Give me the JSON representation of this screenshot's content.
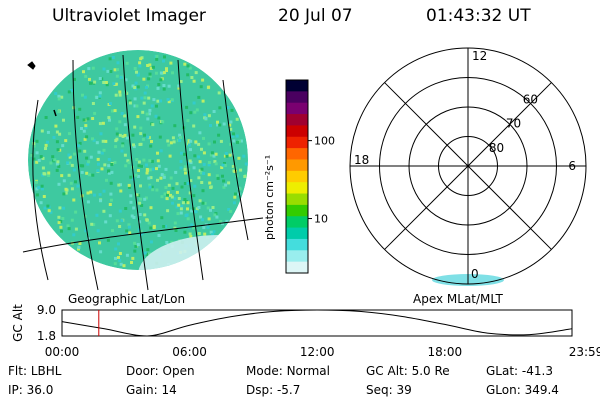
{
  "header": {
    "instrument": "Ultraviolet Imager",
    "date": "20 Jul 07",
    "time": "01:43:32 UT"
  },
  "colorbar": {
    "unit_label": "photon cm⁻²s⁻¹",
    "ticks": [
      {
        "label": "100",
        "value": 100
      },
      {
        "label": "10",
        "value": 10
      }
    ],
    "range": [
      2,
      600
    ],
    "colors": [
      "#000033",
      "#4a0060",
      "#7a0070",
      "#a00030",
      "#cc0000",
      "#ee2200",
      "#ff6600",
      "#ff9900",
      "#ffcc00",
      "#eeee00",
      "#99dd00",
      "#33cc00",
      "#00cc66",
      "#00ccaa",
      "#44dddd",
      "#99eeee",
      "#ddf6f6"
    ]
  },
  "polar": {
    "label": "Apex MLat/MLT",
    "hour_labels": [
      {
        "label": "12",
        "value": 12
      },
      {
        "label": "6",
        "value": 6
      },
      {
        "label": "0",
        "value": 0
      },
      {
        "label": "18",
        "value": 18
      }
    ],
    "lat_labels": [
      {
        "label": "60",
        "value": 60
      },
      {
        "label": "70",
        "value": 70
      },
      {
        "label": "80",
        "value": 80
      }
    ]
  },
  "geo": {
    "label": "Geographic Lat/Lon",
    "fill_color": "#3ec9a0",
    "edge_color": "#cdeff0"
  },
  "chart_data": {
    "type": "line",
    "ylabel": "GC Alt",
    "y_ticks": [
      "9.0",
      "1.8"
    ],
    "ylim": [
      1.8,
      9.0
    ],
    "x_ticks": [
      "00:00",
      "06:00",
      "12:00",
      "18:00",
      "23:59"
    ],
    "x_hours": [
      0,
      2,
      4,
      6,
      8,
      10,
      12,
      14,
      16,
      18,
      20,
      22,
      23.98
    ],
    "altitude_re": [
      5.8,
      3.8,
      1.8,
      4.8,
      7.2,
      8.6,
      9.0,
      8.6,
      7.2,
      5.0,
      2.6,
      2.2,
      3.8
    ],
    "current_time_hours": 1.73
  },
  "footer": {
    "rows": [
      [
        {
          "key": "Flt:",
          "value": "LBHL"
        },
        {
          "key": "Door:",
          "value": "Open"
        },
        {
          "key": "Mode:",
          "value": "Normal"
        },
        {
          "key": "GC Alt:",
          "value": "5.0 Re"
        },
        {
          "key": "GLat:",
          "value": "-41.3"
        }
      ],
      [
        {
          "key": "IP:",
          "value": "36.0"
        },
        {
          "key": "Gain:",
          "value": "14"
        },
        {
          "key": "Dsp:",
          "value": "-5.7"
        },
        {
          "key": "Seq:",
          "value": "39"
        },
        {
          "key": "GLon:",
          "value": "349.4"
        }
      ]
    ]
  }
}
